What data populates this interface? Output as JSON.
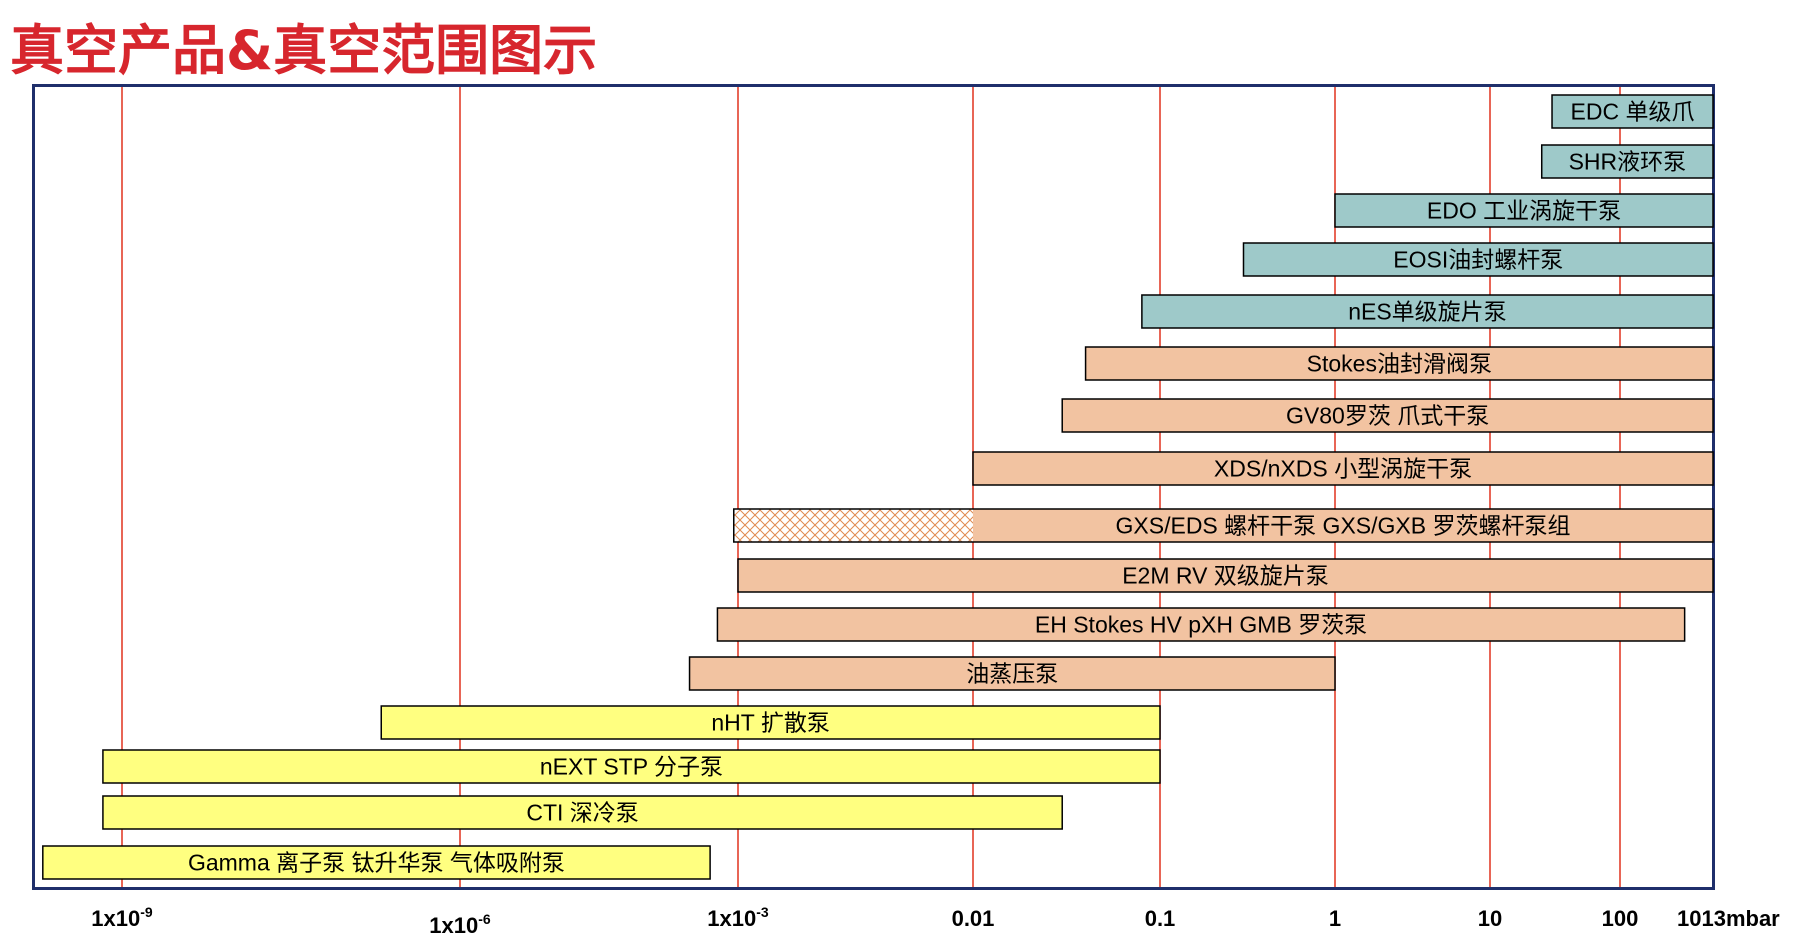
{
  "title": "真空产品&真空范围图示",
  "colors": {
    "title": "#d7262d",
    "frame": "#1f2f6b",
    "gridline": "#e0321e",
    "blue": "#9ec9c9",
    "orange": "#f2c3a1",
    "yellow": "#ffff80",
    "hatch": "#e08a50"
  },
  "chart_data": {
    "type": "range-bar",
    "x_scale": "log",
    "xlim": [
      1e-10,
      2000
    ],
    "x_unit": "mbar",
    "grid": "vertical",
    "ticks": [
      {
        "value": 1e-09,
        "base": "1x10",
        "exp": "-9"
      },
      {
        "value": 1e-06,
        "base": "1x10",
        "exp": "-6"
      },
      {
        "value": 0.001,
        "base": "1x10",
        "exp": "-3"
      },
      {
        "value": 0.01,
        "base": "0.01",
        "exp": ""
      },
      {
        "value": 0.1,
        "base": "0.1",
        "exp": ""
      },
      {
        "value": 1,
        "base": "1",
        "exp": ""
      },
      {
        "value": 10,
        "base": "10",
        "exp": ""
      },
      {
        "value": 100,
        "base": "100",
        "exp": ""
      },
      {
        "value": 1013,
        "base": "1013mbar",
        "exp": ""
      }
    ],
    "bars": [
      {
        "label": "EDC 单级爪",
        "min": 30,
        "max": 1013,
        "color": "blue"
      },
      {
        "label": "SHR液环泵",
        "min": 25,
        "max": 1013,
        "color": "blue"
      },
      {
        "label": "EDO 工业涡旋干泵",
        "min": 1,
        "max": 1013,
        "color": "blue"
      },
      {
        "label": "EOSI油封螺杆泵",
        "min": 0.3,
        "max": 1013,
        "color": "blue"
      },
      {
        "label": "nES单级旋片泵",
        "min": 0.08,
        "max": 1013,
        "color": "blue"
      },
      {
        "label": "Stokes油封滑阀泵",
        "min": 0.04,
        "max": 1013,
        "color": "orange"
      },
      {
        "label": "GV80罗茨 爪式干泵",
        "min": 0.03,
        "max": 1013,
        "color": "orange"
      },
      {
        "label": "XDS/nXDS 小型涡旋干泵",
        "min": 0.01,
        "max": 1013,
        "color": "orange"
      },
      {
        "label": "GXS/EDS 螺杆干泵  GXS/GXB 罗茨螺杆泵组",
        "min": 0.0009,
        "max": 1013,
        "color": "orange",
        "hatch_to": 0.01
      },
      {
        "label": "E2M RV 双级旋片泵",
        "min": 0.001,
        "max": 1013,
        "color": "orange"
      },
      {
        "label": "EH Stokes HV pXH GMB 罗茨泵",
        "min": 0.0006,
        "max": 500,
        "color": "orange"
      },
      {
        "label": "油蒸压泵",
        "min": 0.0003,
        "max": 1,
        "color": "orange"
      },
      {
        "label": "nHT 扩散泵",
        "min": 2e-07,
        "max": 0.1,
        "color": "yellow"
      },
      {
        "label": "nEXT STP 分子泵",
        "min": 6e-10,
        "max": 0.1,
        "color": "yellow"
      },
      {
        "label": "CTI 深冷泵",
        "min": 6e-10,
        "max": 0.03,
        "color": "yellow"
      },
      {
        "label": "Gamma 离子泵 钛升华泵 气体吸附泵",
        "min": 1.2e-10,
        "max": 0.0005,
        "color": "yellow"
      }
    ]
  }
}
